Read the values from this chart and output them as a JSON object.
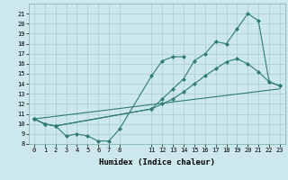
{
  "xlabel": "Humidex (Indice chaleur)",
  "bg_color": "#cce8ec",
  "line_color": "#2e7d6e",
  "grid_color": "#aacccc",
  "ylim": [
    8,
    22
  ],
  "xlim": [
    -0.5,
    23.5
  ],
  "line1_x": [
    0,
    1,
    2,
    3,
    4,
    5,
    6,
    7,
    8,
    11,
    12,
    13,
    14
  ],
  "line1_y": [
    10.5,
    10.0,
    9.8,
    8.8,
    9.0,
    8.8,
    8.3,
    8.3,
    9.5,
    14.8,
    16.3,
    16.7,
    16.7
  ],
  "line2_x": [
    0,
    1,
    2,
    11,
    12,
    13,
    14,
    15,
    16,
    17,
    18,
    19,
    20,
    21,
    22,
    23
  ],
  "line2_y": [
    10.5,
    10.0,
    9.8,
    11.5,
    12.5,
    13.5,
    14.5,
    16.3,
    17.0,
    18.2,
    18.0,
    19.5,
    21.0,
    20.3,
    14.2,
    13.8
  ],
  "line3_x": [
    0,
    1,
    2,
    11,
    12,
    13,
    14,
    15,
    16,
    17,
    18,
    19,
    20,
    21,
    22,
    23
  ],
  "line3_y": [
    10.5,
    10.0,
    9.8,
    11.5,
    12.0,
    12.5,
    13.2,
    14.0,
    14.8,
    15.5,
    16.2,
    16.5,
    16.0,
    15.2,
    14.2,
    13.8
  ],
  "line4_x": [
    0,
    23
  ],
  "line4_y": [
    10.5,
    13.5
  ],
  "x_ticks": [
    0,
    1,
    2,
    3,
    4,
    5,
    6,
    7,
    8,
    11,
    12,
    13,
    14,
    15,
    16,
    17,
    18,
    19,
    20,
    21,
    22,
    23
  ],
  "y_ticks": [
    8,
    9,
    10,
    11,
    12,
    13,
    14,
    15,
    16,
    17,
    18,
    19,
    20,
    21
  ]
}
